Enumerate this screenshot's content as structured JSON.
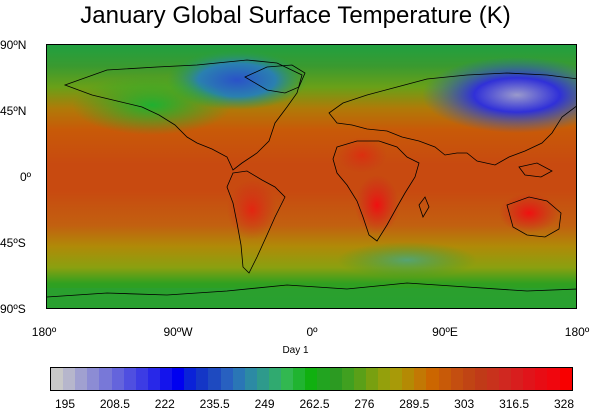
{
  "title": "January Global Surface Temperature (K)",
  "subtitle": "Day 1",
  "map": {
    "projection": "cylindrical-equidistant",
    "lon_range": [
      -180,
      180
    ],
    "lat_range": [
      -90,
      90
    ],
    "lat_labels": [
      "90ºN",
      "45ºN",
      "0º",
      "45ºS",
      "90ºS"
    ],
    "lon_labels": [
      "180º",
      "90ºW",
      "0º",
      "90ºE",
      "180º"
    ]
  },
  "colorbar": {
    "labels": [
      "195",
      "208.5",
      "222",
      "235.5",
      "249",
      "262.5",
      "276",
      "289.5",
      "303",
      "316.5",
      "328"
    ],
    "colors": [
      "#c8c8c8",
      "#b6b6cc",
      "#a0a0d0",
      "#8c8cd4",
      "#7878d8",
      "#6464dc",
      "#4f4fe0",
      "#3c3ce4",
      "#2828e8",
      "#1414ec",
      "#0000f0",
      "#0a22d8",
      "#1436c6",
      "#1e4ac0",
      "#2860c0",
      "#2a76b6",
      "#2c8aa4",
      "#2e9a8c",
      "#30aa70",
      "#32b850",
      "#20b430",
      "#10b010",
      "#22a420",
      "#2c9a22",
      "#40a020",
      "#5aa018",
      "#78a010",
      "#94a00c",
      "#a89a08",
      "#b48a04",
      "#c27804",
      "#cc6600",
      "#c85a08",
      "#c44e10",
      "#c04414",
      "#c03a18",
      "#c8321c",
      "#d02820",
      "#d81e1e",
      "#e0141a",
      "#e80c14",
      "#f0060e",
      "#f80000"
    ]
  },
  "chart_data": {
    "type": "heatmap",
    "title": "January Global Surface Temperature (K)",
    "subtitle": "Day 1",
    "x_range": [
      -180,
      180
    ],
    "y_range": [
      -90,
      90
    ],
    "value_range": [
      195,
      328
    ],
    "units": "K"
  }
}
